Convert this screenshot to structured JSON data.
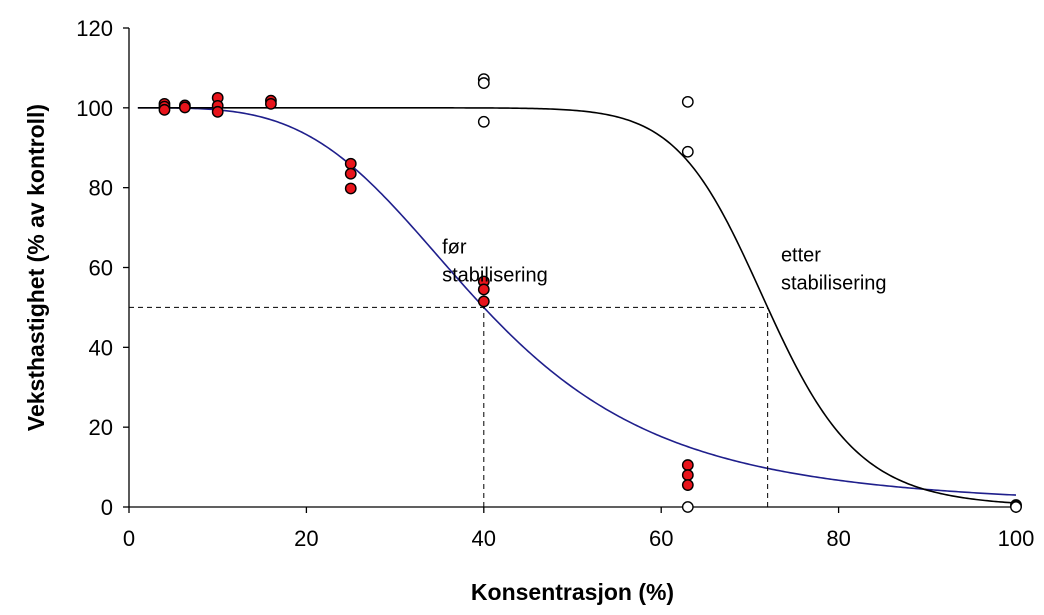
{
  "chart_data": {
    "type": "scatter",
    "title": "",
    "xlabel": "Konsentrasjon (%)",
    "ylabel": "Veksthastighet (% av kontroll)",
    "xlim": [
      0,
      100
    ],
    "ylim": [
      0,
      120
    ],
    "xticks": [
      0,
      20,
      40,
      60,
      80,
      100
    ],
    "yticks": [
      0,
      20,
      40,
      60,
      80,
      100,
      120
    ],
    "grid": false,
    "legend": "none",
    "annotations": [
      {
        "id": "before",
        "lines": [
          "før",
          "stabilisering"
        ],
        "x": 35.3,
        "y": 63.5
      },
      {
        "id": "after",
        "lines": [
          "etter",
          "stabilisering"
        ],
        "x": 73.5,
        "y": 61.5
      }
    ],
    "reference_lines": [
      {
        "type": "horizontal",
        "y": 50,
        "x_from": 0,
        "x_to": 72
      },
      {
        "type": "vertical",
        "x": 40,
        "y_from": 0,
        "y_to": 50
      },
      {
        "type": "vertical",
        "x": 72,
        "y_from": 0,
        "y_to": 50
      }
    ],
    "series": [
      {
        "id": "before_points",
        "marker": "filled-circle",
        "color": "#e8141b",
        "points": [
          [
            4,
            101
          ],
          [
            4,
            100.3
          ],
          [
            4,
            99.5
          ],
          [
            6.3,
            100.6
          ],
          [
            6.3,
            100.1
          ],
          [
            10,
            102.5
          ],
          [
            10,
            100.5
          ],
          [
            10,
            99
          ],
          [
            16,
            101.8
          ],
          [
            16,
            101
          ],
          [
            25,
            86
          ],
          [
            25,
            83.5
          ],
          [
            25,
            79.8
          ],
          [
            40,
            56.5
          ],
          [
            40,
            54.5
          ],
          [
            40,
            51.5
          ],
          [
            63,
            10.5
          ],
          [
            63,
            8
          ],
          [
            63,
            5.5
          ],
          [
            100,
            0.5
          ],
          [
            100,
            0.2
          ]
        ]
      },
      {
        "id": "after_points",
        "marker": "open-circle",
        "color": "#000000",
        "points": [
          [
            40,
            107.2
          ],
          [
            40,
            106.2
          ],
          [
            40,
            96.5
          ],
          [
            63,
            101.5
          ],
          [
            63,
            89
          ],
          [
            63,
            0
          ],
          [
            100,
            0
          ]
        ]
      },
      {
        "id": "before_curve",
        "line": true,
        "color": "#1f1f8c",
        "model": "log-logistic",
        "x50": 40,
        "slope": 3.8,
        "top": 100
      },
      {
        "id": "after_curve",
        "line": true,
        "color": "#000000",
        "model": "log-logistic",
        "x50": 72,
        "slope": 14,
        "top": 100
      }
    ]
  }
}
